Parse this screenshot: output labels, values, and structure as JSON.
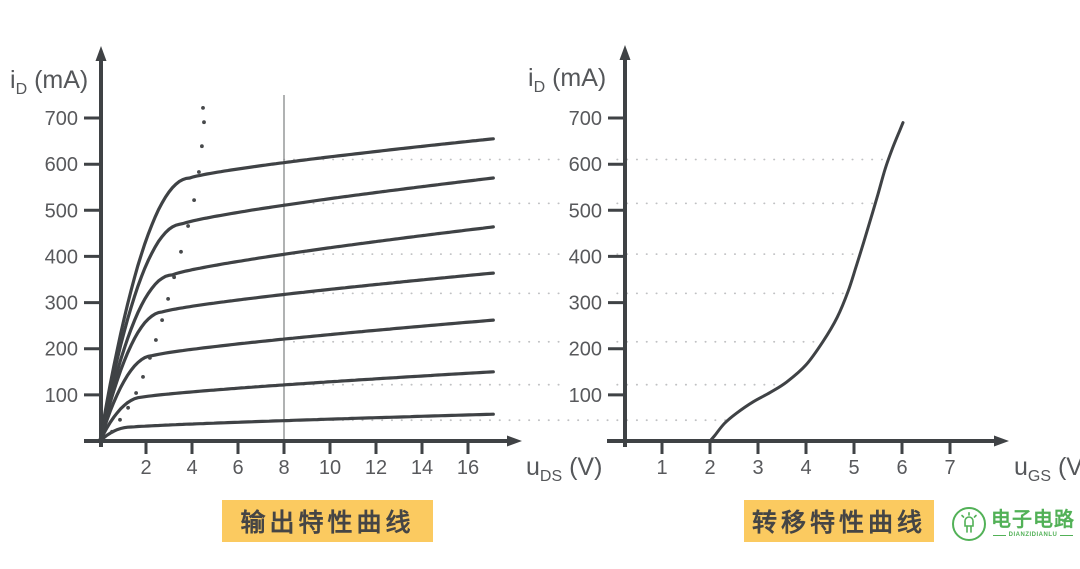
{
  "colors": {
    "curve": "#3f4245",
    "axis": "#3f4245",
    "tick_label": "#58595c",
    "axis_label": "#55575a",
    "dotted_guide": "#c0c1c3",
    "boundary_dots": "#47494b",
    "reference_line": "#7c7e80",
    "badge_bg": "#fbca60",
    "badge_text": "#454545",
    "logo_green": "#52b157",
    "background": "#ffffff"
  },
  "badges": {
    "output_label": "输出特性曲线",
    "transfer_label": "转移特性曲线"
  },
  "logo": {
    "name": "电子电路",
    "tagline": "DIANZIDIANLU"
  },
  "chart_data": [
    {
      "id": "output-characteristics",
      "type": "line",
      "title": "输出特性曲线",
      "ylabel": {
        "pre": "i",
        "sub": "D",
        "post": " (mA)"
      },
      "xlabel": {
        "pre": "u",
        "sub": "DS",
        "post": " (V)"
      },
      "xlim": [
        0,
        17.5
      ],
      "ylim": [
        0,
        780
      ],
      "x_ticks": [
        2,
        4,
        6,
        8,
        10,
        12,
        14,
        16
      ],
      "y_ticks": [
        100,
        200,
        300,
        400,
        500,
        600,
        700
      ],
      "reference_uds": 8,
      "legend_position": "none",
      "grid": "dotted horizontal guides at each curve value for u_DS = 8 V",
      "series": [
        {
          "name": "curve-1",
          "u_knee": 3.9,
          "i_sat": 570,
          "i_at_8v": 610,
          "i_end": 655
        },
        {
          "name": "curve-2",
          "u_knee": 3.55,
          "i_sat": 470,
          "i_at_8v": 515,
          "i_end": 570
        },
        {
          "name": "curve-3",
          "u_knee": 3.15,
          "i_sat": 360,
          "i_at_8v": 405,
          "i_end": 464
        },
        {
          "name": "curve-4",
          "u_knee": 2.75,
          "i_sat": 280,
          "i_at_8v": 320,
          "i_end": 364
        },
        {
          "name": "curve-5",
          "u_knee": 2.3,
          "i_sat": 185,
          "i_at_8v": 215,
          "i_end": 262
        },
        {
          "name": "curve-6",
          "u_knee": 1.85,
          "i_sat": 95,
          "i_at_8v": 122,
          "i_end": 150
        },
        {
          "name": "curve-7",
          "u_knee": 1.3,
          "i_sat": 30,
          "i_at_8v": 45,
          "i_end": 58
        }
      ],
      "saturation_boundary": [
        [
          0.52,
          20
        ],
        [
          0.87,
          46
        ],
        [
          1.22,
          72
        ],
        [
          1.57,
          104
        ],
        [
          1.87,
          139
        ],
        [
          2.17,
          180
        ],
        [
          2.43,
          219
        ],
        [
          2.7,
          262
        ],
        [
          2.96,
          308
        ],
        [
          3.22,
          355
        ],
        [
          3.52,
          410
        ],
        [
          3.83,
          466
        ],
        [
          4.09,
          522
        ],
        [
          4.3,
          583
        ],
        [
          4.43,
          639
        ],
        [
          4.52,
          691
        ],
        [
          4.48,
          722
        ]
      ]
    },
    {
      "id": "transfer-characteristic",
      "type": "line",
      "title": "转移特性曲线",
      "ylabel": {
        "pre": "i",
        "sub": "D",
        "post": " (mA)"
      },
      "xlabel": {
        "pre": "u",
        "sub": "GS",
        "post": " (V)"
      },
      "xlim": [
        0,
        8
      ],
      "ylim": [
        0,
        780
      ],
      "x_ticks": [
        1,
        2,
        3,
        4,
        5,
        6,
        7
      ],
      "y_ticks": [
        100,
        200,
        300,
        400,
        500,
        600,
        700
      ],
      "threshold_voltage": 2,
      "legend_position": "none",
      "curve_points": [
        [
          2,
          0
        ],
        [
          2.1,
          12
        ],
        [
          2.3,
          38
        ],
        [
          2.55,
          60
        ],
        [
          2.9,
          85
        ],
        [
          3.25,
          105
        ],
        [
          3.6,
          128
        ],
        [
          4,
          165
        ],
        [
          4.35,
          215
        ],
        [
          4.65,
          268
        ],
        [
          4.88,
          325
        ],
        [
          5.05,
          380
        ],
        [
          5.2,
          430
        ],
        [
          5.35,
          482
        ],
        [
          5.5,
          535
        ],
        [
          5.65,
          590
        ],
        [
          5.8,
          634
        ],
        [
          5.95,
          672
        ],
        [
          6.02,
          690
        ]
      ]
    }
  ]
}
